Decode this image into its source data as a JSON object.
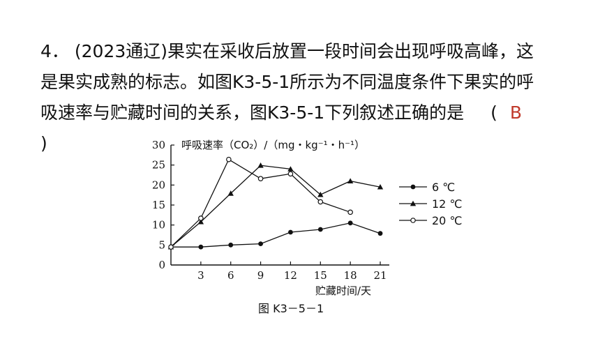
{
  "question": {
    "line1": "4． (2023通辽)果实在采收后放置一段时间会出现呼吸高峰，这",
    "line2": "是果实成熟的标志。如图K3-5-1所示为不同温度条件下果实的呼",
    "line3_text": "吸速率与贮藏时间的关系，图K3-5-1下列叙述正确的是",
    "paren_open": "(",
    "answer": "B",
    "paren_close": ")"
  },
  "figure": {
    "caption": "图 K3－5－1"
  },
  "chart_data": {
    "type": "line",
    "ylabel": "呼吸速率（CO₂）/（mg・kg⁻¹・h⁻¹）",
    "xlabel": "贮藏时间/天",
    "xlim": [
      0,
      21
    ],
    "ylim": [
      0,
      30
    ],
    "xticks": [
      "3",
      "6",
      "9",
      "12",
      "15",
      "18",
      "21"
    ],
    "yticks": [
      "0",
      "5",
      "10",
      "15",
      "20",
      "25",
      "30"
    ],
    "grid": false,
    "legend_position": "right",
    "series": [
      {
        "name": "6 ℃",
        "marker": "filled-circle",
        "x": [
          0,
          3,
          6,
          9,
          12,
          15,
          18,
          21
        ],
        "y": [
          4.5,
          4.5,
          5.0,
          5.3,
          8.2,
          8.9,
          10.5,
          7.9
        ]
      },
      {
        "name": "12 ℃",
        "marker": "filled-triangle",
        "x": [
          0,
          3,
          6,
          9,
          12,
          15,
          18,
          21
        ],
        "y": [
          4.5,
          10.8,
          17.9,
          24.9,
          24.0,
          17.6,
          21.0,
          19.5
        ]
      },
      {
        "name": "20 ℃",
        "marker": "open-circle",
        "x": [
          0,
          3,
          5.8,
          9,
          12,
          15,
          18
        ],
        "y": [
          4.5,
          11.7,
          26.4,
          21.6,
          22.8,
          15.8,
          13.2
        ]
      }
    ]
  }
}
